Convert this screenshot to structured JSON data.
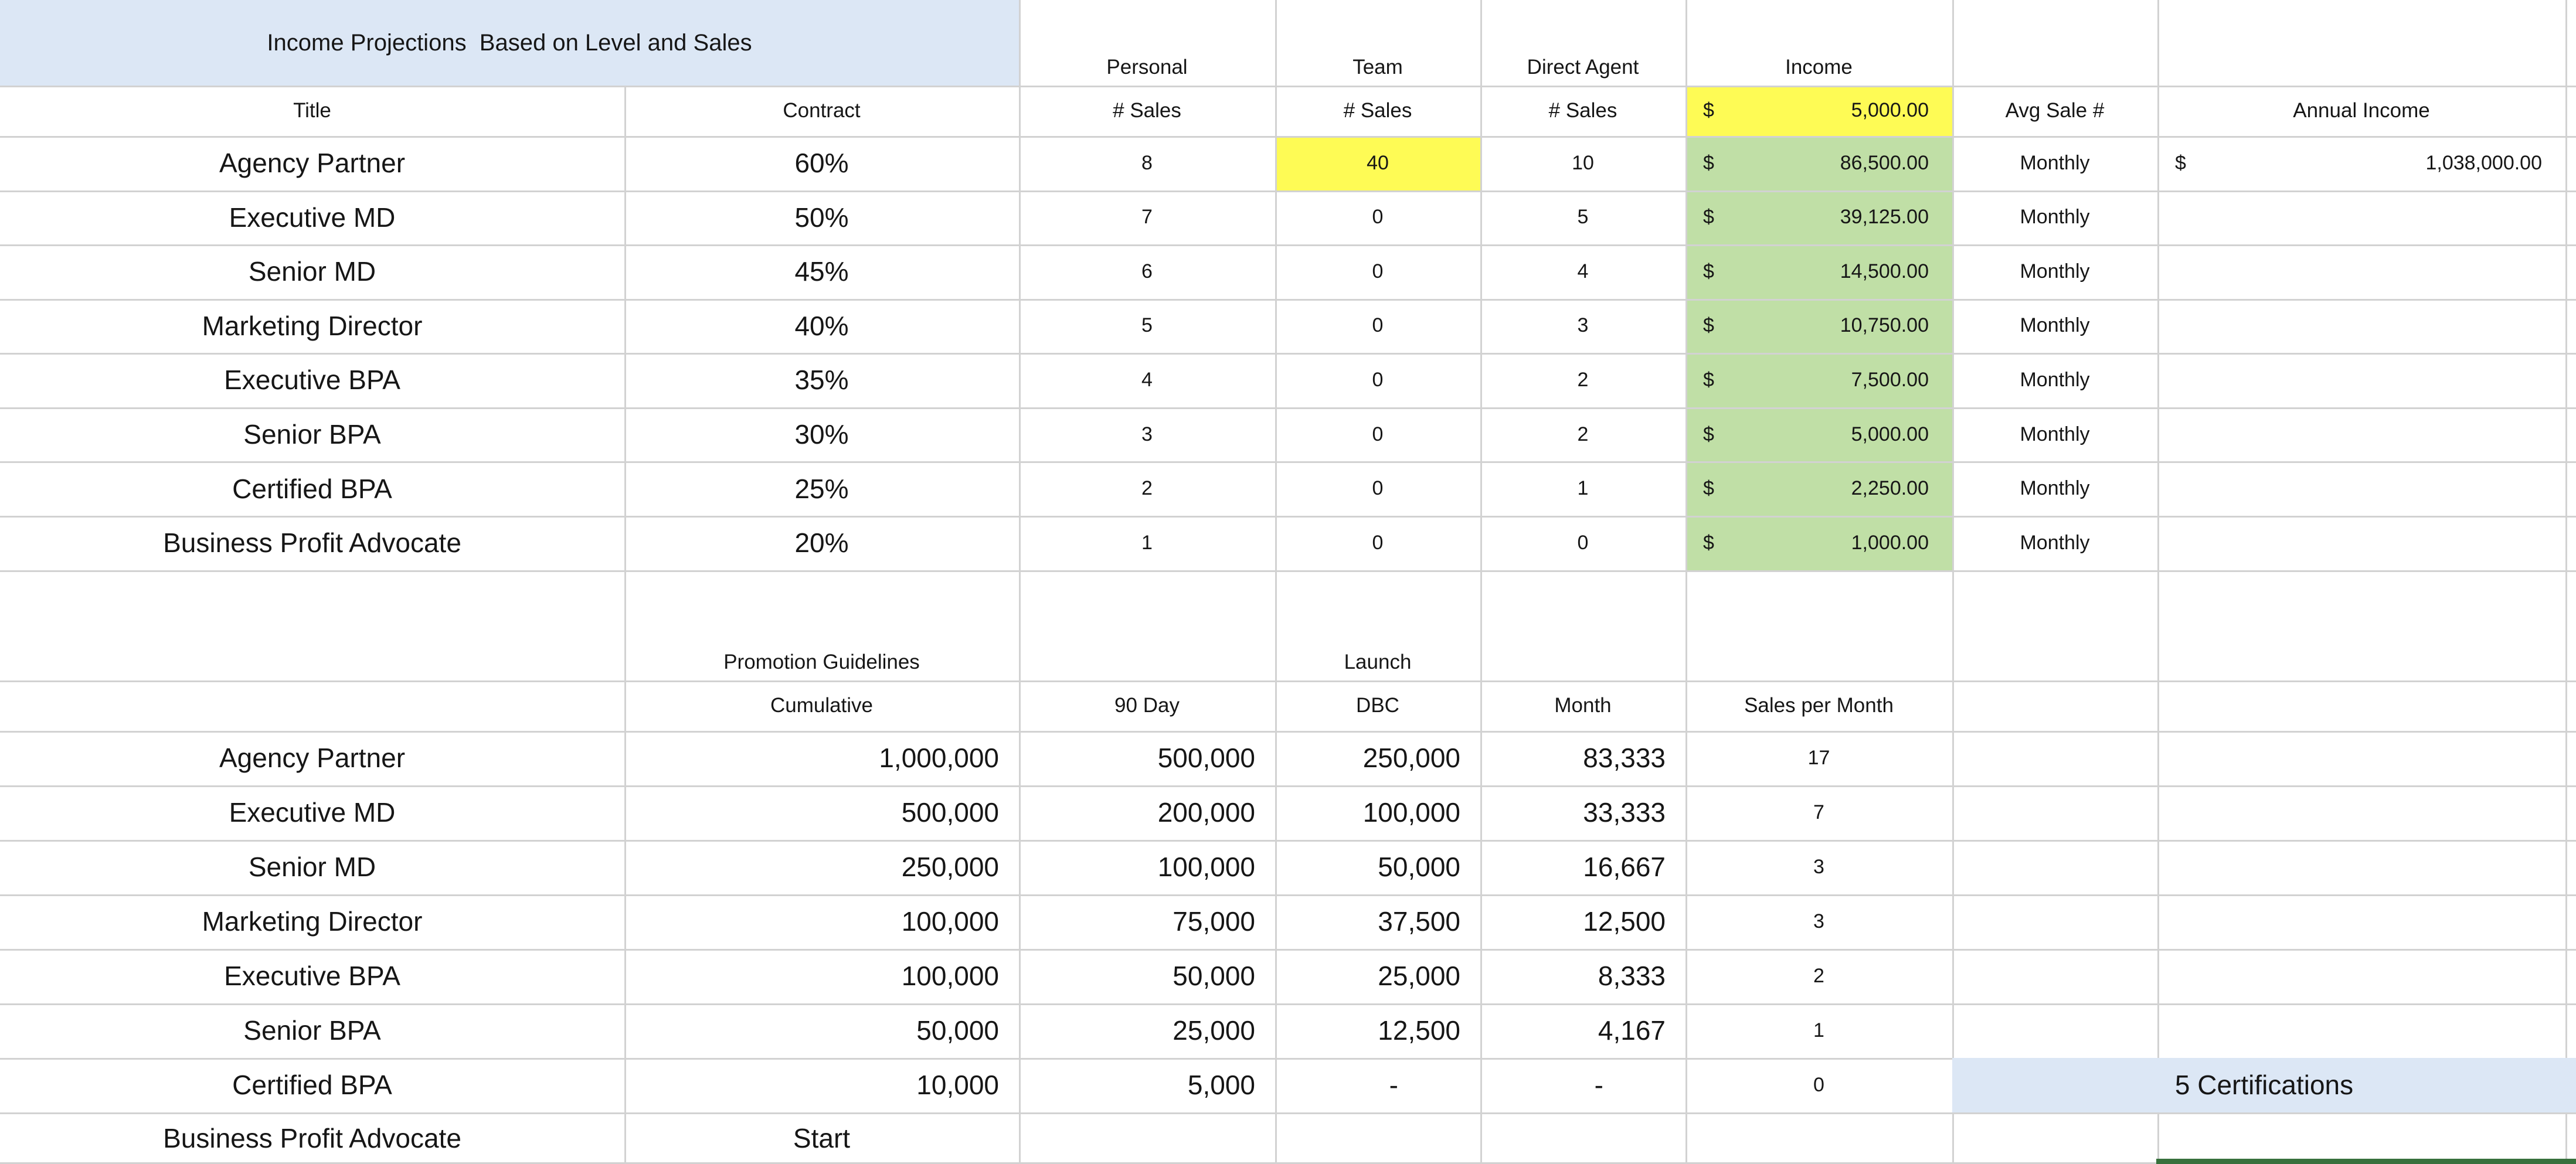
{
  "banner": {
    "title": "Income Projections  Based on Level and Sales"
  },
  "currency": "$",
  "t1": {
    "group_headers": {
      "personal": "Personal",
      "team": "Team",
      "direct": "Direct Agent",
      "income": "Income"
    },
    "col_headers": {
      "title": "Title",
      "contract": "Contract",
      "num_sales": "# Sales",
      "avg_sale": "Avg Sale #",
      "annual": "Annual Income"
    },
    "avg_sale_value": "5,000.00",
    "rows": [
      {
        "title": "Agency Partner",
        "contract": "60%",
        "personal": "8",
        "team": "40",
        "direct": "10",
        "income": "86,500.00",
        "avg": "Monthly",
        "annual": "1,038,000.00"
      },
      {
        "title": "Executive MD",
        "contract": "50%",
        "personal": "7",
        "team": "0",
        "direct": "5",
        "income": "39,125.00",
        "avg": "Monthly"
      },
      {
        "title": "Senior MD",
        "contract": "45%",
        "personal": "6",
        "team": "0",
        "direct": "4",
        "income": "14,500.00",
        "avg": "Monthly"
      },
      {
        "title": "Marketing Director",
        "contract": "40%",
        "personal": "5",
        "team": "0",
        "direct": "3",
        "income": "10,750.00",
        "avg": "Monthly"
      },
      {
        "title": "Executive BPA",
        "contract": "35%",
        "personal": "4",
        "team": "0",
        "direct": "2",
        "income": "7,500.00",
        "avg": "Monthly"
      },
      {
        "title": "Senior BPA",
        "contract": "30%",
        "personal": "3",
        "team": "0",
        "direct": "2",
        "income": "5,000.00",
        "avg": "Monthly"
      },
      {
        "title": "Certified BPA",
        "contract": "25%",
        "personal": "2",
        "team": "0",
        "direct": "1",
        "income": "2,250.00",
        "avg": "Monthly"
      },
      {
        "title": "Business Profit Advocate",
        "contract": "20%",
        "personal": "1",
        "team": "0",
        "direct": "0",
        "income": "1,000.00",
        "avg": "Monthly"
      }
    ]
  },
  "t2": {
    "section_header": "Promotion Guidelines",
    "launch_label": "Launch",
    "col_headers": {
      "cumulative": "Cumulative",
      "ninety": "90 Day",
      "dbc": "DBC",
      "month": "Month",
      "spm": "Sales per Month"
    },
    "rows": [
      {
        "title": "Agency Partner",
        "cumulative": "1,000,000",
        "ninety": "500,000",
        "dbc": "250,000",
        "month": "83,333",
        "spm": "17"
      },
      {
        "title": "Executive MD",
        "cumulative": "500,000",
        "ninety": "200,000",
        "dbc": "100,000",
        "month": "33,333",
        "spm": "7"
      },
      {
        "title": "Senior MD",
        "cumulative": "250,000",
        "ninety": "100,000",
        "dbc": "50,000",
        "month": "16,667",
        "spm": "3"
      },
      {
        "title": "Marketing Director",
        "cumulative": "100,000",
        "ninety": "75,000",
        "dbc": "37,500",
        "month": "12,500",
        "spm": "3"
      },
      {
        "title": "Executive BPA",
        "cumulative": "100,000",
        "ninety": "50,000",
        "dbc": "25,000",
        "month": "8,333",
        "spm": "2"
      },
      {
        "title": "Senior BPA",
        "cumulative": "50,000",
        "ninety": "25,000",
        "dbc": "12,500",
        "month": "4,167",
        "spm": "1"
      },
      {
        "title": "Certified BPA",
        "cumulative": "10,000",
        "ninety": "5,000",
        "dbc": "-",
        "month": "-",
        "spm": "0"
      },
      {
        "title": "Business Profit Advocate",
        "cumulative": "Start"
      }
    ],
    "certifications_note": "5 Certifications"
  },
  "colors": {
    "banner_blue": "#dce7f5",
    "highlight_yellow": "#fefb55",
    "income_green": "#c0dfa6",
    "note_blue": "#dce7f5",
    "accent_green": "#38713d",
    "gridline": "#d2d2d2",
    "text": "#161616"
  }
}
